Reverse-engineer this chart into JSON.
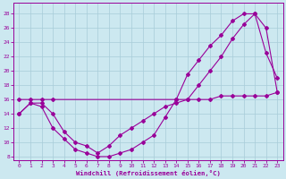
{
  "xlabel": "Windchill (Refroidissement éolien,°C)",
  "bg_color": "#cce8f0",
  "grid_color": "#a8ccd8",
  "line_color": "#990099",
  "xlim": [
    -0.5,
    23.5
  ],
  "ylim": [
    7.5,
    29.5
  ],
  "yticks": [
    8,
    10,
    12,
    14,
    16,
    18,
    20,
    22,
    24,
    26,
    28
  ],
  "xticks": [
    0,
    1,
    2,
    3,
    4,
    5,
    6,
    7,
    8,
    9,
    10,
    11,
    12,
    13,
    14,
    15,
    16,
    17,
    18,
    19,
    20,
    21,
    22,
    23
  ],
  "line1_x": [
    0,
    1,
    2,
    3,
    14,
    15,
    16,
    17,
    18,
    19,
    20,
    21,
    22,
    23
  ],
  "line1_y": [
    16,
    16,
    16,
    16,
    16,
    16,
    16,
    16,
    16.5,
    16.5,
    16.5,
    16.5,
    16.5,
    17
  ],
  "line2_x": [
    0,
    1,
    2,
    3,
    4,
    5,
    6,
    7,
    8,
    9,
    10,
    11,
    12,
    13,
    14,
    15,
    16,
    17,
    18,
    19,
    20,
    21,
    22,
    23
  ],
  "line2_y": [
    14,
    15.5,
    15,
    12,
    10.5,
    9,
    8.5,
    8,
    8,
    8.5,
    9,
    10,
    11,
    13.5,
    16,
    19.5,
    21.5,
    23.5,
    25,
    27,
    28,
    28,
    22.5,
    19
  ],
  "line3_x": [
    0,
    1,
    2,
    3,
    4,
    5,
    6,
    7,
    8,
    9,
    10,
    11,
    12,
    13,
    14,
    15,
    16,
    17,
    18,
    19,
    20,
    21,
    22,
    23
  ],
  "line3_y": [
    14,
    15.5,
    15.5,
    14,
    11.5,
    10,
    9.5,
    8.5,
    9.5,
    11,
    12,
    13,
    14,
    15,
    15.5,
    16,
    18,
    20,
    22,
    24.5,
    26.5,
    28,
    26,
    17
  ]
}
